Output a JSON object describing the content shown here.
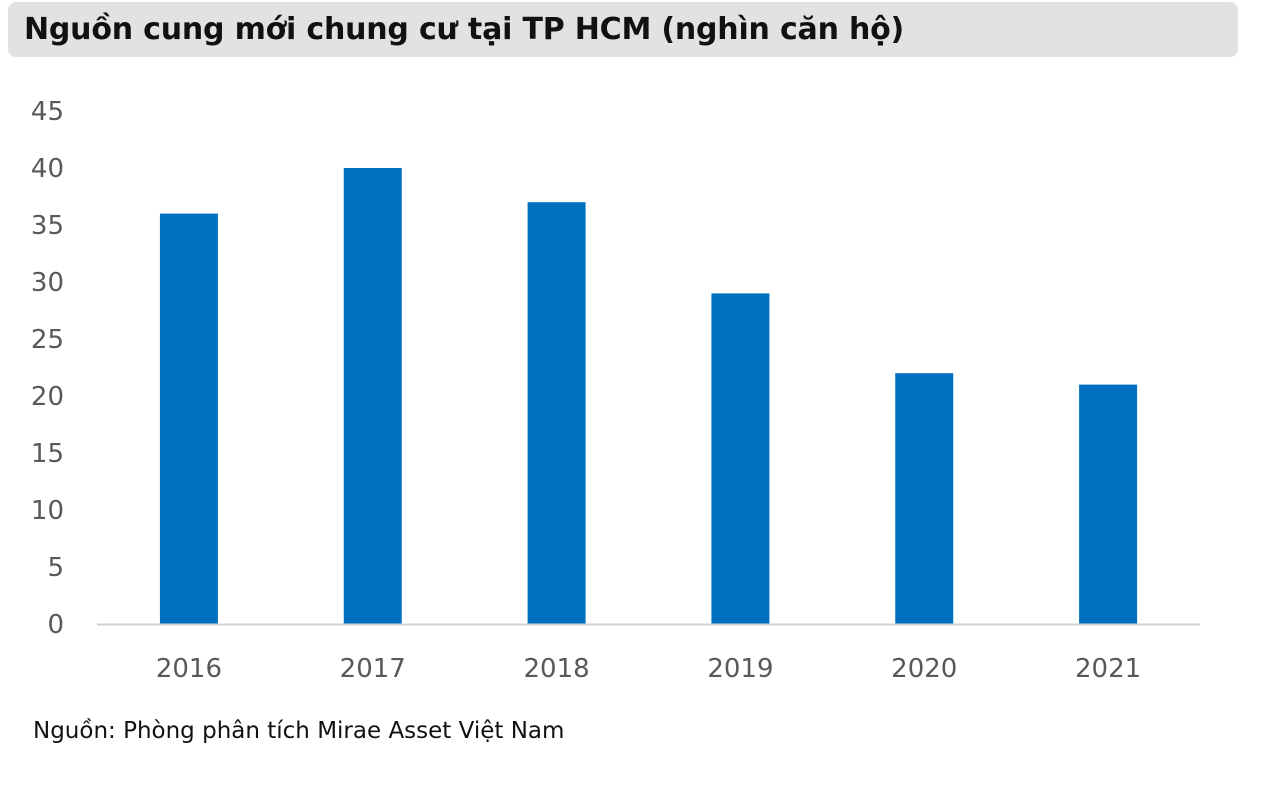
{
  "title": "Nguồn cung mới chung cư tại TP HCM (nghìn căn hộ)",
  "source_note": "Nguồn: Phòng phân tích Mirae Asset Việt Nam",
  "colors": {
    "bar": "#0070C0",
    "title_background": "#e2e2e2",
    "axis_line": "#d0d0d0",
    "text": "#595959"
  },
  "chart_data": {
    "type": "bar",
    "title": "Nguồn cung mới chung cư tại TP HCM (nghìn căn hộ)",
    "categories": [
      "2016",
      "2017",
      "2018",
      "2019",
      "2020",
      "2021"
    ],
    "values": [
      36,
      40,
      37,
      29,
      22,
      21
    ],
    "ylim": [
      0,
      45
    ],
    "yticks": [
      0,
      5,
      10,
      15,
      20,
      25,
      30,
      35,
      40,
      45
    ],
    "xlabel": "",
    "ylabel": "",
    "grid": false,
    "legend": "none"
  }
}
